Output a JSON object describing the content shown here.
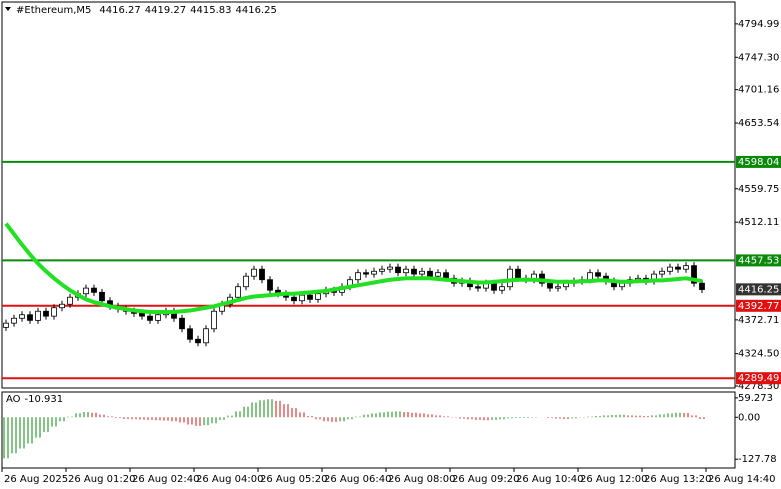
{
  "chart_data": {
    "type": "candlestick",
    "title": "#Ethereum,M5",
    "header_values": [
      4416.27,
      4419.27,
      4415.83,
      4416.25
    ],
    "time_labels": [
      "26 Aug 2025",
      "26 Aug 01:20",
      "26 Aug 02:40",
      "26 Aug 04:00",
      "26 Aug 05:20",
      "26 Aug 06:40",
      "26 Aug 08:00",
      "26 Aug 09:20",
      "26 Aug 10:40",
      "26 Aug 12:00",
      "26 Aug 13:20",
      "26 Aug 14:40"
    ],
    "open": [
      4362,
      4368,
      4375,
      4380,
      4372,
      4385,
      4378,
      4390,
      4395,
      4405,
      4410,
      4418,
      4412,
      4400,
      4392,
      4388,
      4385,
      4382,
      4378,
      4372,
      4380,
      4385,
      4375,
      4360,
      4345,
      4340,
      4360,
      4385,
      4395,
      4405,
      4420,
      4435,
      4445,
      4430,
      4415,
      4410,
      4405,
      4400,
      4408,
      4402,
      4410,
      4415,
      4412,
      4420,
      4430,
      4440,
      4438,
      4442,
      4445,
      4448,
      4440,
      4445,
      4438,
      4442,
      4435,
      4440,
      4432,
      4425,
      4428,
      4420,
      4418,
      4425,
      4415,
      4420,
      4445,
      4432,
      4430,
      4438,
      4425,
      4418,
      4420,
      4425,
      4428,
      4430,
      4440,
      4435,
      4428,
      4420,
      4425,
      4430,
      4432,
      4428,
      4438,
      4442,
      4448,
      4445,
      4450,
      4425
    ],
    "high": [
      4373,
      4380,
      4385,
      4385,
      4390,
      4390,
      4395,
      4400,
      4410,
      4415,
      4423,
      4423,
      4417,
      4405,
      4397,
      4393,
      4390,
      4387,
      4383,
      4385,
      4390,
      4390,
      4380,
      4365,
      4350,
      4365,
      4390,
      4400,
      4410,
      4425,
      4440,
      4450,
      4450,
      4435,
      4420,
      4415,
      4410,
      4413,
      4413,
      4415,
      4420,
      4420,
      4425,
      4435,
      4445,
      4445,
      4447,
      4450,
      4453,
      4453,
      4450,
      4450,
      4447,
      4447,
      4445,
      4445,
      4437,
      4433,
      4433,
      4425,
      4430,
      4430,
      4425,
      4450,
      4450,
      4437,
      4443,
      4443,
      4430,
      4425,
      4430,
      4433,
      4435,
      4445,
      4445,
      4440,
      4433,
      4430,
      4435,
      4437,
      4437,
      4443,
      4447,
      4453,
      4453,
      4455,
      4455,
      4430
    ],
    "low": [
      4357,
      4363,
      4370,
      4367,
      4367,
      4373,
      4373,
      4385,
      4390,
      4400,
      4405,
      4407,
      4395,
      4387,
      4383,
      4380,
      4377,
      4373,
      4367,
      4367,
      4375,
      4370,
      4355,
      4340,
      4335,
      4335,
      4355,
      4380,
      4390,
      4400,
      4415,
      4430,
      4425,
      4410,
      4405,
      4400,
      4395,
      4395,
      4397,
      4397,
      4405,
      4407,
      4407,
      4415,
      4425,
      4433,
      4433,
      4437,
      4440,
      4435,
      4435,
      4433,
      4433,
      4430,
      4430,
      4427,
      4420,
      4420,
      4415,
      4413,
      4413,
      4410,
      4410,
      4415,
      4427,
      4425,
      4425,
      4420,
      4413,
      4413,
      4415,
      4420,
      4423,
      4425,
      4430,
      4423,
      4415,
      4415,
      4420,
      4425,
      4423,
      4423,
      4433,
      4437,
      4440,
      4440,
      4420,
      4411
    ],
    "close": [
      4368,
      4375,
      4380,
      4372,
      4385,
      4378,
      4390,
      4395,
      4405,
      4410,
      4418,
      4412,
      4400,
      4392,
      4388,
      4385,
      4382,
      4378,
      4372,
      4380,
      4385,
      4375,
      4360,
      4345,
      4340,
      4360,
      4385,
      4395,
      4405,
      4420,
      4435,
      4445,
      4430,
      4415,
      4410,
      4405,
      4400,
      4408,
      4402,
      4410,
      4415,
      4412,
      4420,
      4430,
      4440,
      4438,
      4442,
      4445,
      4448,
      4440,
      4445,
      4438,
      4442,
      4435,
      4440,
      4432,
      4425,
      4428,
      4420,
      4418,
      4425,
      4415,
      4420,
      4445,
      4432,
      4430,
      4438,
      4425,
      4418,
      4420,
      4425,
      4428,
      4430,
      4440,
      4435,
      4428,
      4420,
      4425,
      4430,
      4432,
      4428,
      4438,
      4442,
      4448,
      4445,
      4450,
      4425,
      4416
    ],
    "moving_average": {
      "color": "#22e022",
      "values": [
        4510,
        4495,
        4480,
        4466,
        4453,
        4442,
        4432,
        4423,
        4415,
        4408,
        4402,
        4398,
        4395,
        4392,
        4390,
        4388,
        4386,
        4385,
        4384,
        4384,
        4384,
        4384,
        4385,
        4386,
        4388,
        4390,
        4392,
        4395,
        4398,
        4401,
        4404,
        4406,
        4407,
        4408,
        4409,
        4410,
        4410,
        4411,
        4412,
        4413,
        4414,
        4416,
        4418,
        4420,
        4422,
        4424,
        4426,
        4428,
        4430,
        4431,
        4432,
        4432,
        4432,
        4432,
        4431,
        4430,
        4429,
        4428,
        4427,
        4426,
        4426,
        4427,
        4428,
        4429,
        4430,
        4430,
        4430,
        4429,
        4428,
        4427,
        4427,
        4427,
        4428,
        4428,
        4429,
        4429,
        4428,
        4427,
        4427,
        4428,
        4428,
        4429,
        4429,
        4430,
        4431,
        4432,
        4430,
        4428
      ]
    },
    "levels": [
      {
        "value": 4598.04,
        "color": "#0a8a0a"
      },
      {
        "value": 4457.53,
        "color": "#0a8a0a"
      },
      {
        "value": 4392.77,
        "color": "#e01010"
      },
      {
        "value": 4289.49,
        "color": "#e01010"
      }
    ],
    "current_price": 4416.25,
    "ylim": [
      4275.5,
      4826.2
    ],
    "yticks": [
      4794.99,
      {
        "value": 4747.3,
        "label": "4747.30"
      },
      4701.16,
      4653.54,
      4559.75,
      4512.11,
      4372.71,
      {
        "value": 4324.5,
        "label": "4324.50"
      },
      {
        "value": 4278.3,
        "label": "4278.30"
      }
    ],
    "indicator": {
      "name": "AO",
      "value": -10.931,
      "up_color": "#0a8a0a",
      "down_color": "#d01010",
      "values": [
        -125,
        -110,
        -95,
        -80,
        -62,
        -45,
        -28,
        -12,
        2,
        12,
        16,
        14,
        8,
        3,
        -2,
        -5,
        -6,
        -7,
        -8,
        -9,
        -10,
        -12,
        -16,
        -22,
        -26,
        -24,
        -18,
        -8,
        5,
        18,
        32,
        45,
        52,
        55,
        50,
        40,
        28,
        15,
        4,
        -6,
        -12,
        -14,
        -12,
        -6,
        2,
        8,
        12,
        15,
        17,
        18,
        16,
        14,
        12,
        9,
        6,
        3,
        -1,
        -4,
        -6,
        -8,
        -9,
        -8,
        -6,
        -3,
        -2,
        -2,
        -1,
        0,
        -2,
        -4,
        -5,
        -3,
        -1,
        2,
        4,
        6,
        7,
        8,
        6,
        5,
        4,
        6,
        9,
        12,
        14,
        13,
        6,
        -5
      ],
      "ylim": [
        -154.5,
        77.1
      ],
      "yticks": [
        59.273,
        {
          "value": 0,
          "label": "0.00"
        },
        -127.78
      ]
    }
  }
}
